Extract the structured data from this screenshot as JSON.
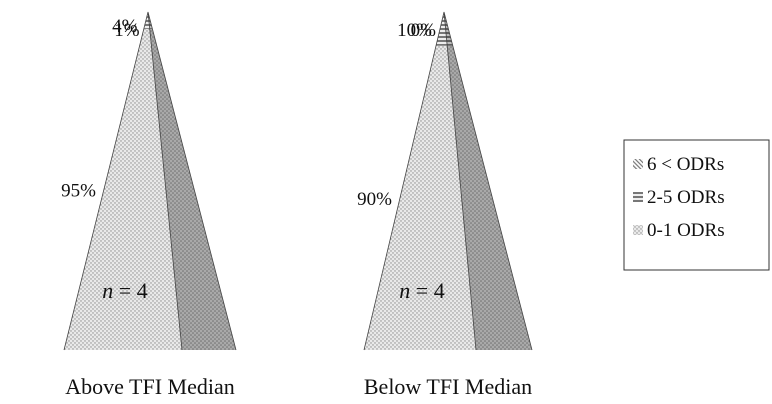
{
  "chart_data": {
    "type": "pyramid",
    "title": "",
    "categories": [
      "Above TFI Median",
      "Below TFI Median"
    ],
    "series": [
      {
        "name": "0-1 ODRs",
        "pattern": "dots",
        "values": [
          95,
          90
        ],
        "labels": [
          "95%",
          "90%"
        ]
      },
      {
        "name": "2-5 ODRs",
        "pattern": "horizontal-stripes",
        "values": [
          4,
          10
        ],
        "labels": [
          "4%",
          "10%"
        ]
      },
      {
        "name": "6 < ODRs",
        "pattern": "diagonal-stripes",
        "values": [
          1,
          0
        ],
        "labels": [
          "1%",
          "0%"
        ]
      }
    ],
    "annotations": [
      {
        "category": "Above TFI Median",
        "n_prefix": "n",
        "n_suffix": " = 4"
      },
      {
        "category": "Below TFI Median",
        "n_prefix": "n",
        "n_suffix": " = 4"
      }
    ],
    "legend_position": "right",
    "colors": {
      "front_fill": "#e6e6e6",
      "side_fill": "#b3b3b3",
      "stripe": "#707070",
      "outline": "#444444"
    }
  }
}
